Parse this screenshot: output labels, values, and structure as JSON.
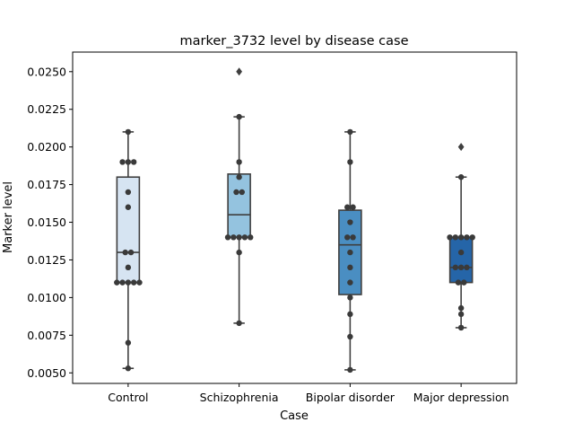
{
  "chart_data": {
    "type": "box",
    "title": "marker_3732 level by disease case",
    "xlabel": "Case",
    "ylabel": "Marker level",
    "categories": [
      "Control",
      "Schizophrenia",
      "Bipolar disorder",
      "Major depression"
    ],
    "ylim": [
      0.0043,
      0.0263
    ],
    "yticks": [
      0.005,
      0.0075,
      0.01,
      0.0125,
      0.015,
      0.0175,
      0.02,
      0.0225,
      0.025
    ],
    "ytick_labels": [
      "0.0050",
      "0.0075",
      "0.0100",
      "0.0125",
      "0.0150",
      "0.0175",
      "0.0200",
      "0.0225",
      "0.0250"
    ],
    "colors": [
      "#d6e4f2",
      "#94c3df",
      "#4a8ec2",
      "#2565a8"
    ],
    "boxes": [
      {
        "name": "Control",
        "q1": 0.011,
        "median": 0.013,
        "q3": 0.018,
        "whisker_low": 0.0053,
        "whisker_high": 0.021,
        "outliers": []
      },
      {
        "name": "Schizophrenia",
        "q1": 0.014,
        "median": 0.0155,
        "q3": 0.0182,
        "whisker_low": 0.0083,
        "whisker_high": 0.022,
        "outliers": [
          0.025
        ]
      },
      {
        "name": "Bipolar disorder",
        "q1": 0.0102,
        "median": 0.0135,
        "q3": 0.0158,
        "whisker_low": 0.0052,
        "whisker_high": 0.021,
        "outliers": []
      },
      {
        "name": "Major depression",
        "q1": 0.011,
        "median": 0.012,
        "q3": 0.014,
        "whisker_low": 0.008,
        "whisker_high": 0.018,
        "outliers": [
          0.02
        ]
      }
    ],
    "points": [
      {
        "category": "Control",
        "values": [
          0.021,
          0.019,
          0.019,
          0.019,
          0.017,
          0.016,
          0.013,
          0.013,
          0.012,
          0.011,
          0.011,
          0.011,
          0.011,
          0.011,
          0.007,
          0.0053
        ]
      },
      {
        "category": "Schizophrenia",
        "values": [
          0.022,
          0.019,
          0.018,
          0.017,
          0.017,
          0.014,
          0.014,
          0.014,
          0.014,
          0.014,
          0.013,
          0.0083
        ]
      },
      {
        "category": "Bipolar disorder",
        "values": [
          0.021,
          0.019,
          0.016,
          0.016,
          0.015,
          0.014,
          0.014,
          0.013,
          0.012,
          0.011,
          0.01,
          0.0089,
          0.0074,
          0.0052
        ]
      },
      {
        "category": "Major depression",
        "values": [
          0.018,
          0.014,
          0.014,
          0.014,
          0.014,
          0.014,
          0.013,
          0.012,
          0.012,
          0.012,
          0.011,
          0.011,
          0.0093,
          0.0089,
          0.008
        ]
      }
    ],
    "grid": false,
    "legend": "none"
  }
}
